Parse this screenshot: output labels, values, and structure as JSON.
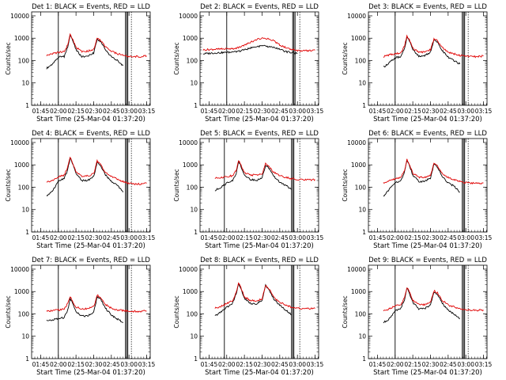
{
  "colors": {
    "events": "#000000",
    "lld": "#e00000",
    "axis": "#000000"
  },
  "figure": {
    "ylabel": "Counts/sec",
    "xlabel": "Start Time (25-Mar-04 01:37:20)",
    "xtick_labels": [
      "01:45",
      "02:00",
      "02:15",
      "02:30",
      "02:45",
      "03:00",
      "03:15"
    ],
    "ytick_labels": [
      "1",
      "10",
      "100",
      "1000",
      "10000"
    ]
  },
  "chart_data": [
    {
      "type": "line",
      "title": "Det 1: BLACK = Events, RED = LLD",
      "xlim": [
        "01:37:20",
        "03:18"
      ],
      "ylim": [
        1,
        15000
      ],
      "yscale": "log",
      "x": [
        "01:50",
        "01:55",
        "02:00",
        "02:05",
        "02:08",
        "02:10",
        "02:12",
        "02:15",
        "02:20",
        "02:25",
        "02:30",
        "02:33",
        "02:36",
        "02:40",
        "02:45",
        "02:50",
        "02:55",
        "03:00",
        "03:05",
        "03:10",
        "03:15"
      ],
      "series": [
        {
          "name": "Events",
          "values": [
            45,
            70,
            140,
            150,
            400,
            1400,
            900,
            300,
            150,
            150,
            220,
            900,
            700,
            300,
            150,
            100,
            60,
            null,
            null,
            null,
            null
          ]
        },
        {
          "name": "LLD",
          "values": [
            170,
            200,
            230,
            250,
            500,
            1500,
            950,
            380,
            260,
            260,
            320,
            1000,
            800,
            400,
            260,
            200,
            180,
            150,
            150,
            150,
            160
          ]
        }
      ],
      "markers_x": [
        "02:00",
        "02:57",
        "02:58",
        "02:59"
      ]
    },
    {
      "type": "line",
      "title": "Det 2: BLACK = Events, RED = LLD",
      "xlim": [
        "01:37:20",
        "03:18"
      ],
      "ylim": [
        1,
        15000
      ],
      "yscale": "log",
      "x": [
        "01:40",
        "01:50",
        "02:00",
        "02:05",
        "02:10",
        "02:15",
        "02:20",
        "02:25",
        "02:30",
        "02:35",
        "02:40",
        "02:45",
        "02:50",
        "02:55",
        "03:00",
        "03:05",
        "03:10",
        "03:15"
      ],
      "series": [
        {
          "name": "Events",
          "values": [
            200,
            220,
            230,
            240,
            260,
            300,
            360,
            420,
            450,
            430,
            380,
            320,
            250,
            230,
            200,
            null,
            null,
            null
          ]
        },
        {
          "name": "LLD",
          "values": [
            300,
            320,
            330,
            340,
            380,
            480,
            650,
            850,
            1000,
            950,
            750,
            500,
            380,
            320,
            280,
            270,
            280,
            290
          ]
        }
      ],
      "markers_x": [
        "02:00",
        "02:56",
        "02:57",
        "02:58"
      ]
    },
    {
      "type": "line",
      "title": "Det 3: BLACK = Events, RED = LLD",
      "xlim": [
        "01:37:20",
        "03:18"
      ],
      "ylim": [
        1,
        15000
      ],
      "yscale": "log",
      "x": [
        "01:50",
        "01:55",
        "02:00",
        "02:05",
        "02:08",
        "02:10",
        "02:12",
        "02:15",
        "02:20",
        "02:25",
        "02:30",
        "02:33",
        "02:36",
        "02:40",
        "02:45",
        "02:50",
        "02:55",
        "03:00",
        "03:05",
        "03:10",
        "03:15"
      ],
      "series": [
        {
          "name": "Events",
          "values": [
            50,
            80,
            130,
            150,
            350,
            1100,
            800,
            300,
            160,
            160,
            240,
            850,
            650,
            280,
            140,
            100,
            70,
            null,
            null,
            null,
            null
          ]
        },
        {
          "name": "LLD",
          "values": [
            150,
            180,
            200,
            220,
            450,
            1200,
            900,
            350,
            240,
            240,
            300,
            950,
            750,
            380,
            240,
            200,
            170,
            160,
            150,
            150,
            160
          ]
        }
      ],
      "markers_x": [
        "02:00",
        "02:57",
        "02:58",
        "02:59"
      ]
    },
    {
      "type": "line",
      "title": "Det 4: BLACK = Events, RED = LLD",
      "xlim": [
        "01:37:20",
        "03:18"
      ],
      "ylim": [
        1,
        15000
      ],
      "yscale": "log",
      "x": [
        "01:50",
        "01:55",
        "02:00",
        "02:05",
        "02:08",
        "02:10",
        "02:12",
        "02:15",
        "02:20",
        "02:25",
        "02:30",
        "02:33",
        "02:36",
        "02:40",
        "02:45",
        "02:50",
        "02:55",
        "03:00",
        "03:05",
        "03:10",
        "03:15"
      ],
      "series": [
        {
          "name": "Events",
          "values": [
            40,
            70,
            180,
            250,
            600,
            2000,
            1200,
            400,
            200,
            200,
            300,
            1400,
            900,
            350,
            180,
            120,
            60,
            null,
            null,
            null,
            null
          ]
        },
        {
          "name": "LLD",
          "values": [
            160,
            200,
            280,
            350,
            800,
            2100,
            1300,
            500,
            320,
            320,
            400,
            1500,
            1000,
            450,
            300,
            230,
            180,
            150,
            140,
            140,
            150
          ]
        }
      ],
      "markers_x": [
        "02:00",
        "02:57",
        "02:58",
        "02:59"
      ]
    },
    {
      "type": "line",
      "title": "Det 5: BLACK = Events, RED = LLD",
      "xlim": [
        "01:37:20",
        "03:18"
      ],
      "ylim": [
        1,
        15000
      ],
      "yscale": "log",
      "x": [
        "01:50",
        "01:55",
        "02:00",
        "02:05",
        "02:08",
        "02:10",
        "02:12",
        "02:15",
        "02:20",
        "02:25",
        "02:30",
        "02:33",
        "02:36",
        "02:40",
        "02:45",
        "02:50",
        "02:55",
        "03:00",
        "03:05",
        "03:10",
        "03:15"
      ],
      "series": [
        {
          "name": "Events",
          "values": [
            70,
            100,
            150,
            200,
            400,
            1500,
            900,
            350,
            220,
            200,
            260,
            1000,
            700,
            300,
            170,
            120,
            80,
            null,
            null,
            null,
            null
          ]
        },
        {
          "name": "LLD",
          "values": [
            250,
            270,
            300,
            330,
            550,
            1600,
            1000,
            450,
            360,
            340,
            380,
            1100,
            800,
            450,
            330,
            280,
            240,
            220,
            210,
            210,
            220
          ]
        }
      ],
      "markers_x": [
        "01:58",
        "02:55",
        "02:56",
        "02:57"
      ]
    },
    {
      "type": "line",
      "title": "Det 6: BLACK = Events, RED = LLD",
      "xlim": [
        "01:37:20",
        "03:18"
      ],
      "ylim": [
        1,
        15000
      ],
      "yscale": "log",
      "x": [
        "01:50",
        "01:55",
        "02:00",
        "02:05",
        "02:08",
        "02:10",
        "02:12",
        "02:15",
        "02:20",
        "02:25",
        "02:30",
        "02:33",
        "02:36",
        "02:40",
        "02:45",
        "02:50",
        "02:55",
        "03:00",
        "03:05",
        "03:10",
        "03:15"
      ],
      "series": [
        {
          "name": "Events",
          "values": [
            40,
            80,
            160,
            200,
            500,
            1600,
            1000,
            350,
            180,
            180,
            260,
            1100,
            800,
            300,
            160,
            110,
            60,
            null,
            null,
            null,
            null
          ]
        },
        {
          "name": "LLD",
          "values": [
            150,
            190,
            240,
            280,
            600,
            1700,
            1100,
            420,
            280,
            280,
            340,
            1200,
            900,
            420,
            270,
            220,
            180,
            160,
            150,
            150,
            155
          ]
        }
      ],
      "markers_x": [
        "02:00",
        "02:57",
        "02:58",
        "02:59"
      ]
    },
    {
      "type": "line",
      "title": "Det 7: BLACK = Events, RED = LLD",
      "xlim": [
        "01:37:20",
        "03:18"
      ],
      "ylim": [
        1,
        15000
      ],
      "yscale": "log",
      "x": [
        "01:50",
        "01:55",
        "02:00",
        "02:05",
        "02:08",
        "02:10",
        "02:12",
        "02:15",
        "02:20",
        "02:25",
        "02:30",
        "02:33",
        "02:36",
        "02:40",
        "02:45",
        "02:50",
        "02:55",
        "03:00",
        "03:05",
        "03:10",
        "03:15"
      ],
      "series": [
        {
          "name": "Events",
          "values": [
            50,
            55,
            60,
            70,
            150,
            500,
            300,
            120,
            80,
            80,
            120,
            600,
            450,
            180,
            90,
            60,
            40,
            null,
            null,
            null,
            null
          ]
        },
        {
          "name": "LLD",
          "values": [
            130,
            140,
            150,
            160,
            300,
            600,
            380,
            200,
            170,
            170,
            210,
            700,
            520,
            260,
            180,
            150,
            140,
            130,
            130,
            130,
            135
          ]
        }
      ],
      "markers_x": [
        "02:00",
        "02:57",
        "02:58",
        "02:59"
      ]
    },
    {
      "type": "line",
      "title": "Det 8: BLACK = Events, RED = LLD",
      "xlim": [
        "01:37:20",
        "03:18"
      ],
      "ylim": [
        1,
        15000
      ],
      "yscale": "log",
      "x": [
        "01:50",
        "01:55",
        "02:00",
        "02:05",
        "02:08",
        "02:10",
        "02:12",
        "02:15",
        "02:20",
        "02:25",
        "02:30",
        "02:33",
        "02:36",
        "02:40",
        "02:45",
        "02:50",
        "02:55",
        "03:00",
        "03:05",
        "03:10",
        "03:15"
      ],
      "series": [
        {
          "name": "Events",
          "values": [
            80,
            120,
            200,
            300,
            800,
            2300,
            1400,
            500,
            300,
            280,
            400,
            1900,
            1200,
            450,
            250,
            150,
            90,
            null,
            null,
            null,
            null
          ]
        },
        {
          "name": "LLD",
          "values": [
            180,
            220,
            290,
            380,
            900,
            2400,
            1500,
            580,
            400,
            370,
            480,
            2000,
            1300,
            550,
            330,
            250,
            200,
            180,
            170,
            170,
            175
          ]
        }
      ],
      "markers_x": [
        "01:58",
        "02:55",
        "02:56",
        "02:57"
      ]
    },
    {
      "type": "line",
      "title": "Det 9: BLACK = Events, RED = LLD",
      "xlim": [
        "01:37:20",
        "03:18"
      ],
      "ylim": [
        1,
        15000
      ],
      "yscale": "log",
      "x": [
        "01:50",
        "01:55",
        "02:00",
        "02:05",
        "02:08",
        "02:10",
        "02:12",
        "02:15",
        "02:20",
        "02:25",
        "02:30",
        "02:33",
        "02:36",
        "02:40",
        "02:45",
        "02:50",
        "02:55",
        "03:00",
        "03:05",
        "03:10",
        "03:15"
      ],
      "series": [
        {
          "name": "Events",
          "values": [
            40,
            60,
            130,
            180,
            450,
            1400,
            900,
            320,
            170,
            170,
            250,
            1000,
            750,
            290,
            150,
            100,
            60,
            null,
            null,
            null,
            null
          ]
        },
        {
          "name": "LLD",
          "values": [
            140,
            170,
            220,
            260,
            550,
            1500,
            1000,
            400,
            260,
            260,
            320,
            1100,
            850,
            400,
            250,
            200,
            170,
            150,
            145,
            145,
            150
          ]
        }
      ],
      "markers_x": [
        "02:00",
        "02:57",
        "02:58",
        "02:59"
      ]
    }
  ]
}
